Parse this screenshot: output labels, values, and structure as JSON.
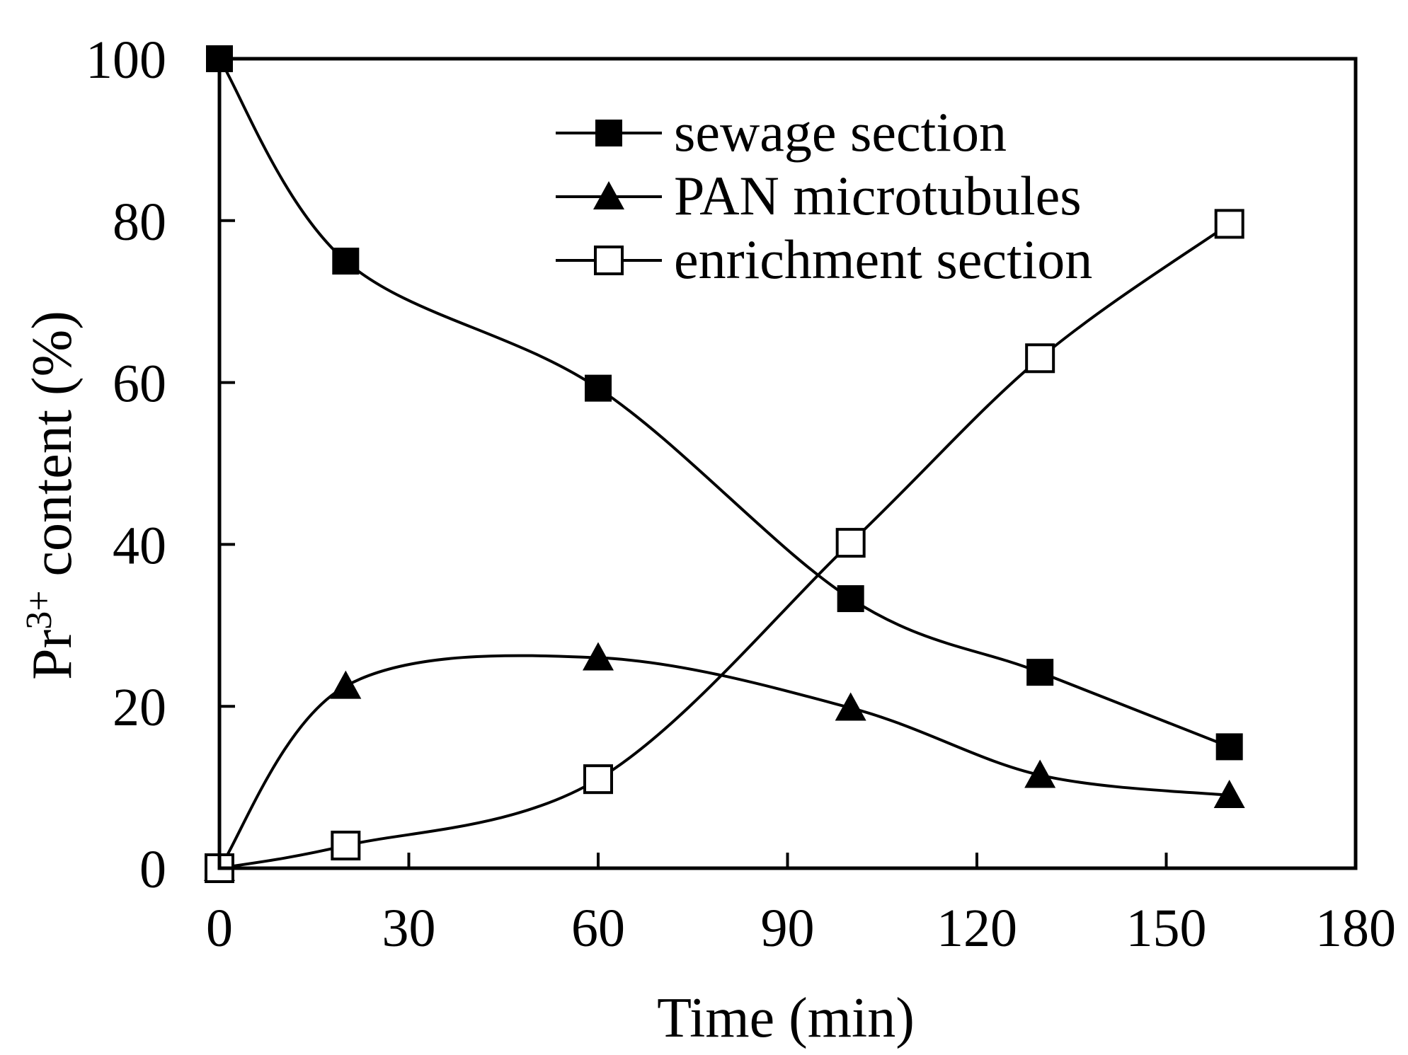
{
  "chart_data": {
    "type": "line",
    "title": "",
    "xlabel": "Time (min)",
    "ylabel": {
      "prefix": "Pr",
      "superscript": "3+",
      "suffix": " content (%)"
    },
    "xlim": [
      0,
      180
    ],
    "ylim": [
      0,
      100
    ],
    "xticks": [
      0,
      30,
      60,
      90,
      120,
      150,
      180
    ],
    "yticks": [
      0,
      20,
      40,
      60,
      80,
      100
    ],
    "grid": false,
    "legend_position": "top-right",
    "series": [
      {
        "name": "sewage section",
        "marker": "filled-square",
        "x": [
          0,
          20,
          60,
          100,
          130,
          160
        ],
        "values": [
          100,
          75,
          59.3,
          33.3,
          24.2,
          15
        ]
      },
      {
        "name": "PAN microtubules",
        "marker": "filled-triangle",
        "x": [
          0,
          20,
          60,
          100,
          130,
          160
        ],
        "values": [
          0,
          22.5,
          26,
          19.8,
          11.5,
          9
        ]
      },
      {
        "name": "enrichment section",
        "marker": "open-square",
        "x": [
          0,
          20,
          60,
          100,
          130,
          160
        ],
        "values": [
          0,
          2.8,
          11,
          40.2,
          63,
          79.6
        ]
      }
    ]
  }
}
